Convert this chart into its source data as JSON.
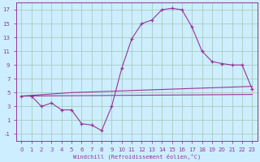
{
  "background_color": "#cceeff",
  "grid_color": "#aaccbb",
  "line_color": "#993399",
  "xlabel": "Windchill (Refroidissement éolien,°C)",
  "xlim": [
    -0.5,
    23.5
  ],
  "ylim": [
    -2,
    18
  ],
  "xticks": [
    0,
    1,
    2,
    3,
    4,
    5,
    6,
    7,
    8,
    9,
    10,
    11,
    12,
    13,
    14,
    15,
    16,
    17,
    18,
    19,
    20,
    21,
    22,
    23
  ],
  "yticks": [
    -1,
    1,
    3,
    5,
    7,
    9,
    11,
    13,
    15,
    17
  ],
  "line1_x": [
    0,
    1,
    2,
    3,
    4,
    5,
    6,
    7,
    8,
    9,
    10,
    11,
    12,
    13,
    14,
    15,
    16,
    17,
    18,
    19,
    20,
    21,
    22,
    23
  ],
  "line1_y": [
    4.5,
    4.5,
    3.0,
    3.5,
    2.5,
    2.5,
    0.5,
    0.3,
    -0.5,
    3.0,
    8.5,
    12.8,
    15.0,
    15.5,
    17.0,
    17.2,
    17.0,
    14.5,
    11.0,
    9.5,
    9.2,
    9.0,
    9.0,
    5.5
  ],
  "line2_x": [
    0,
    1,
    2,
    3,
    4,
    5,
    6,
    7,
    8,
    9,
    10,
    11,
    12,
    13,
    14,
    15,
    16,
    17,
    18,
    19,
    20,
    21,
    22,
    23
  ],
  "line2_y": [
    4.5,
    4.6,
    4.7,
    4.8,
    4.9,
    5.0,
    5.05,
    5.1,
    5.15,
    5.2,
    5.25,
    5.3,
    5.35,
    5.4,
    5.45,
    5.5,
    5.55,
    5.6,
    5.65,
    5.7,
    5.75,
    5.8,
    5.85,
    5.9
  ],
  "line3_x": [
    0,
    1,
    2,
    3,
    4,
    5,
    6,
    7,
    8,
    9,
    10,
    11,
    12,
    13,
    14,
    15,
    16,
    17,
    18,
    19,
    20,
    21,
    22,
    23
  ],
  "line3_y": [
    4.5,
    4.51,
    4.52,
    4.53,
    4.54,
    4.55,
    4.56,
    4.57,
    4.58,
    4.59,
    4.6,
    4.61,
    4.62,
    4.63,
    4.64,
    4.65,
    4.66,
    4.67,
    4.68,
    4.69,
    4.7,
    4.71,
    4.72,
    4.73
  ],
  "xlabel_fontsize": 5,
  "tick_fontsize": 5
}
